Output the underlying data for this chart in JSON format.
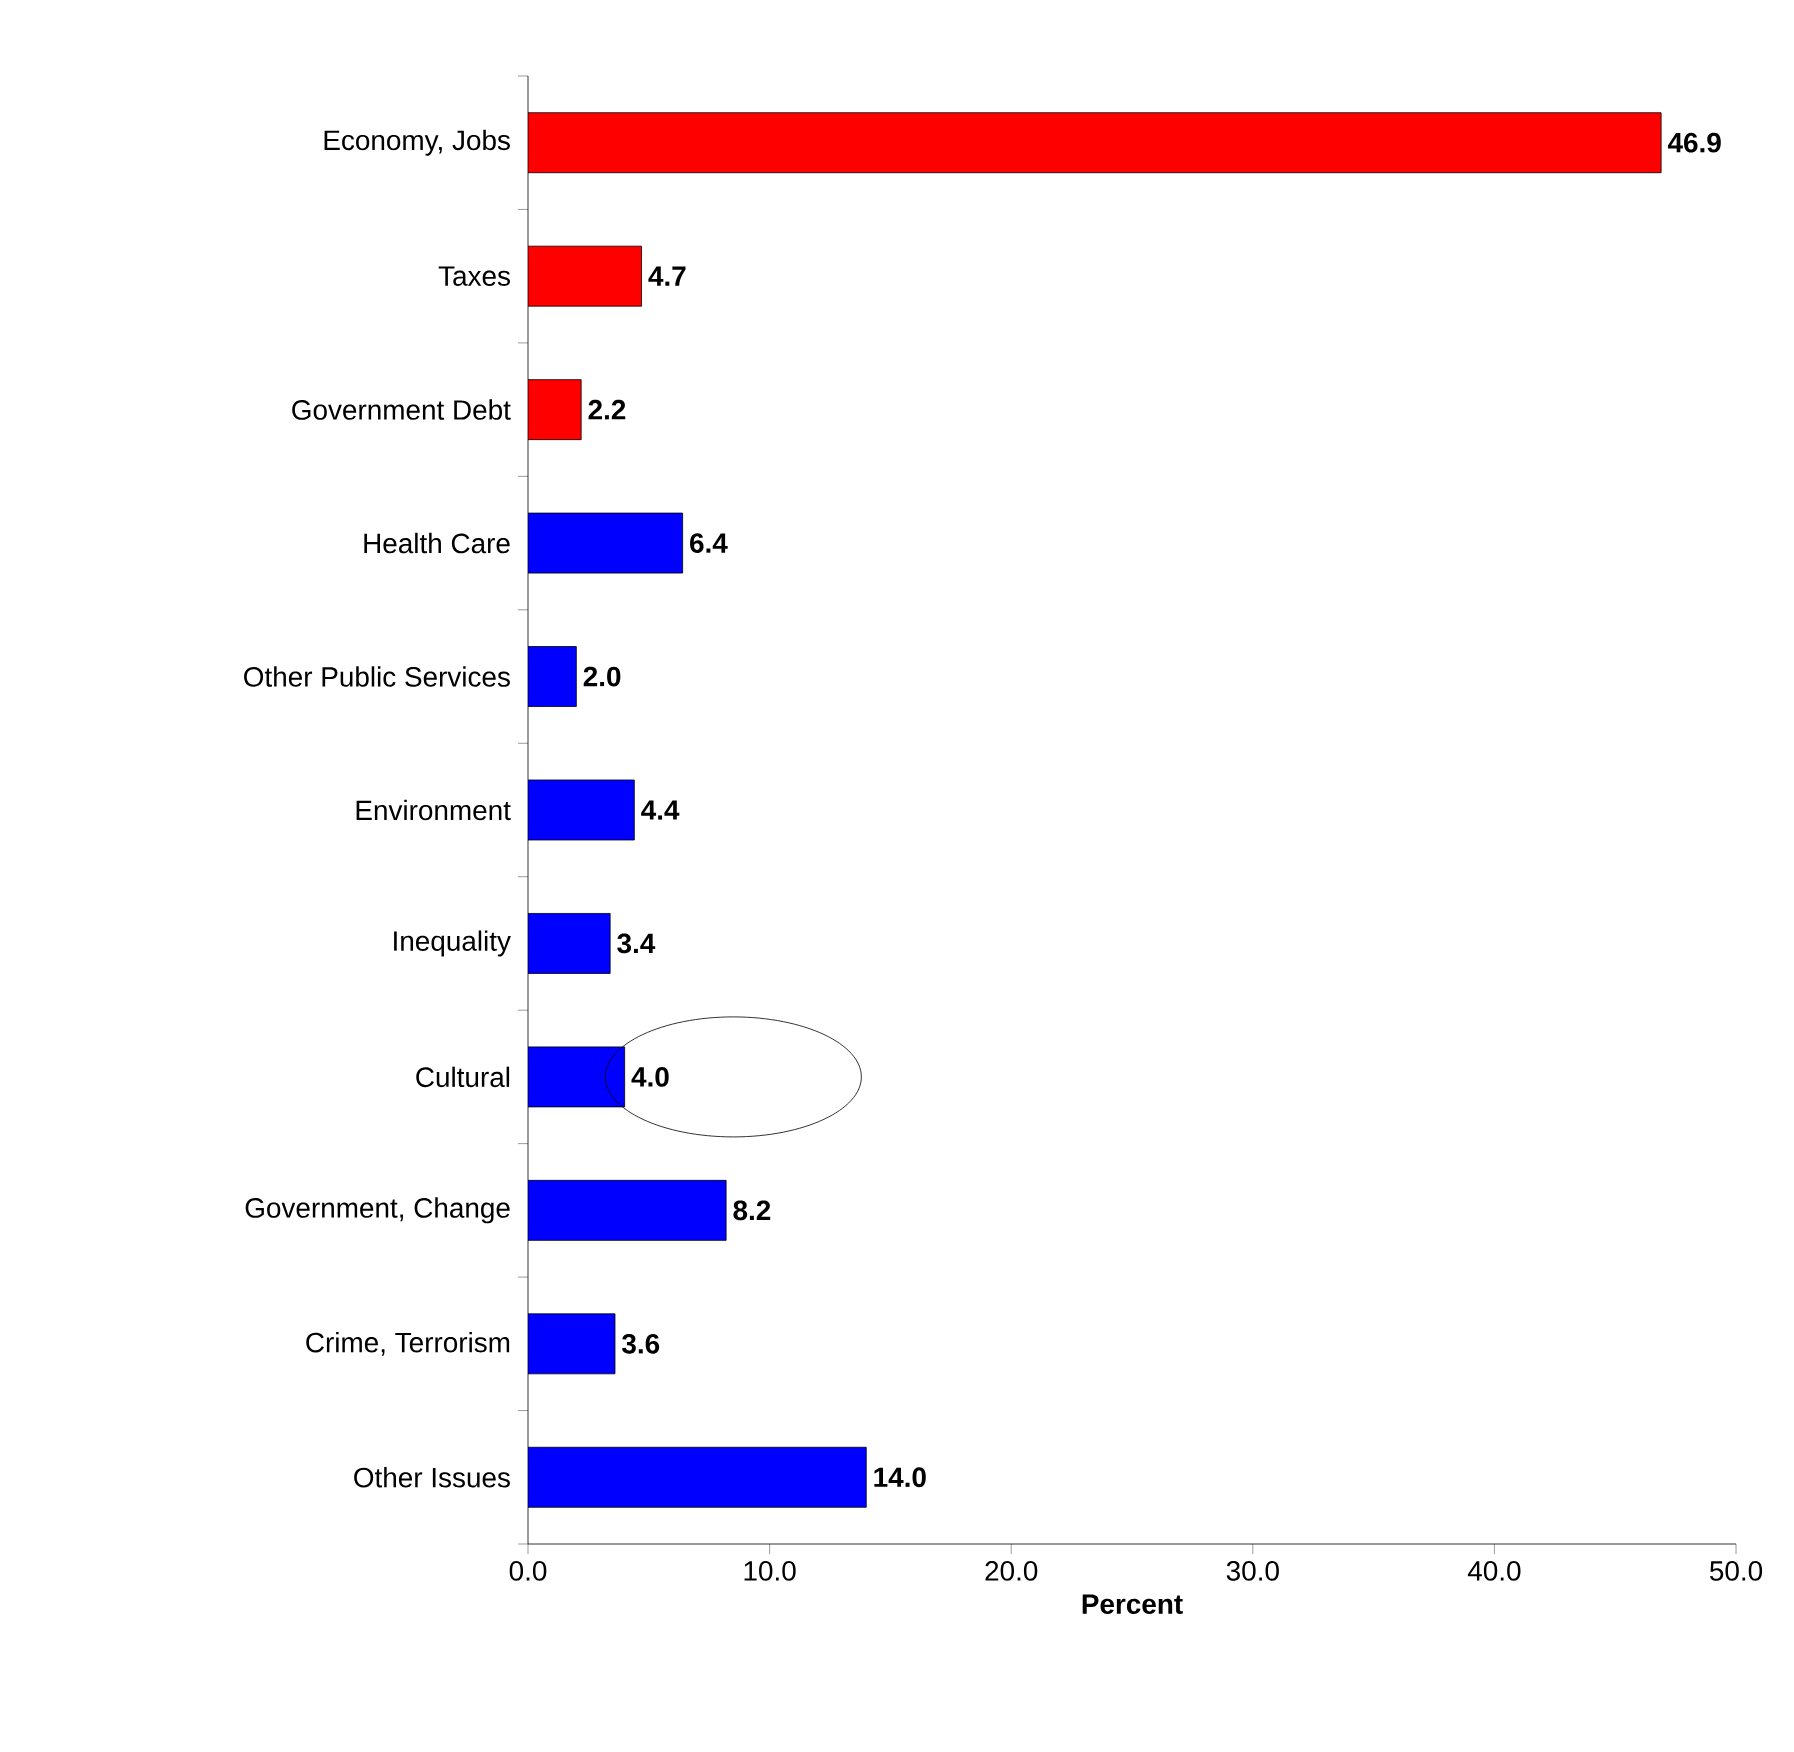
{
  "chart_data": {
    "type": "bar",
    "orientation": "horizontal",
    "xlabel": "Percent",
    "categories": [
      "Economy, Jobs",
      "Taxes",
      "Government Debt",
      "Health Care",
      "Other Public Services",
      "Environment",
      "Inequality",
      "Cultural",
      "Government, Change",
      "Crime, Terrorism",
      "Other Issues"
    ],
    "values": [
      46.9,
      4.7,
      2.2,
      6.4,
      2.0,
      4.4,
      3.4,
      4.0,
      8.2,
      3.6,
      14.0
    ],
    "colors": [
      "#ff0000",
      "#ff0000",
      "#ff0000",
      "#0000ff",
      "#0000ff",
      "#0000ff",
      "#0000ff",
      "#0000ff",
      "#0000ff",
      "#0000ff",
      "#0000ff"
    ],
    "xlim": [
      0,
      50
    ],
    "xticks": [
      {
        "value": 0,
        "label": "0.0"
      },
      {
        "value": 10,
        "label": "10.0"
      },
      {
        "value": 20,
        "label": "20.0"
      },
      {
        "value": 30,
        "label": "30.0"
      },
      {
        "value": 40,
        "label": "40.0"
      },
      {
        "value": 50,
        "label": "50.0"
      }
    ],
    "value_labels": [
      "46.9",
      "4.7",
      "2.2",
      "6.4",
      "2.0",
      "4.4",
      "3.4",
      "4.0",
      "8.2",
      "3.6",
      "14.0"
    ],
    "grid": false
  }
}
